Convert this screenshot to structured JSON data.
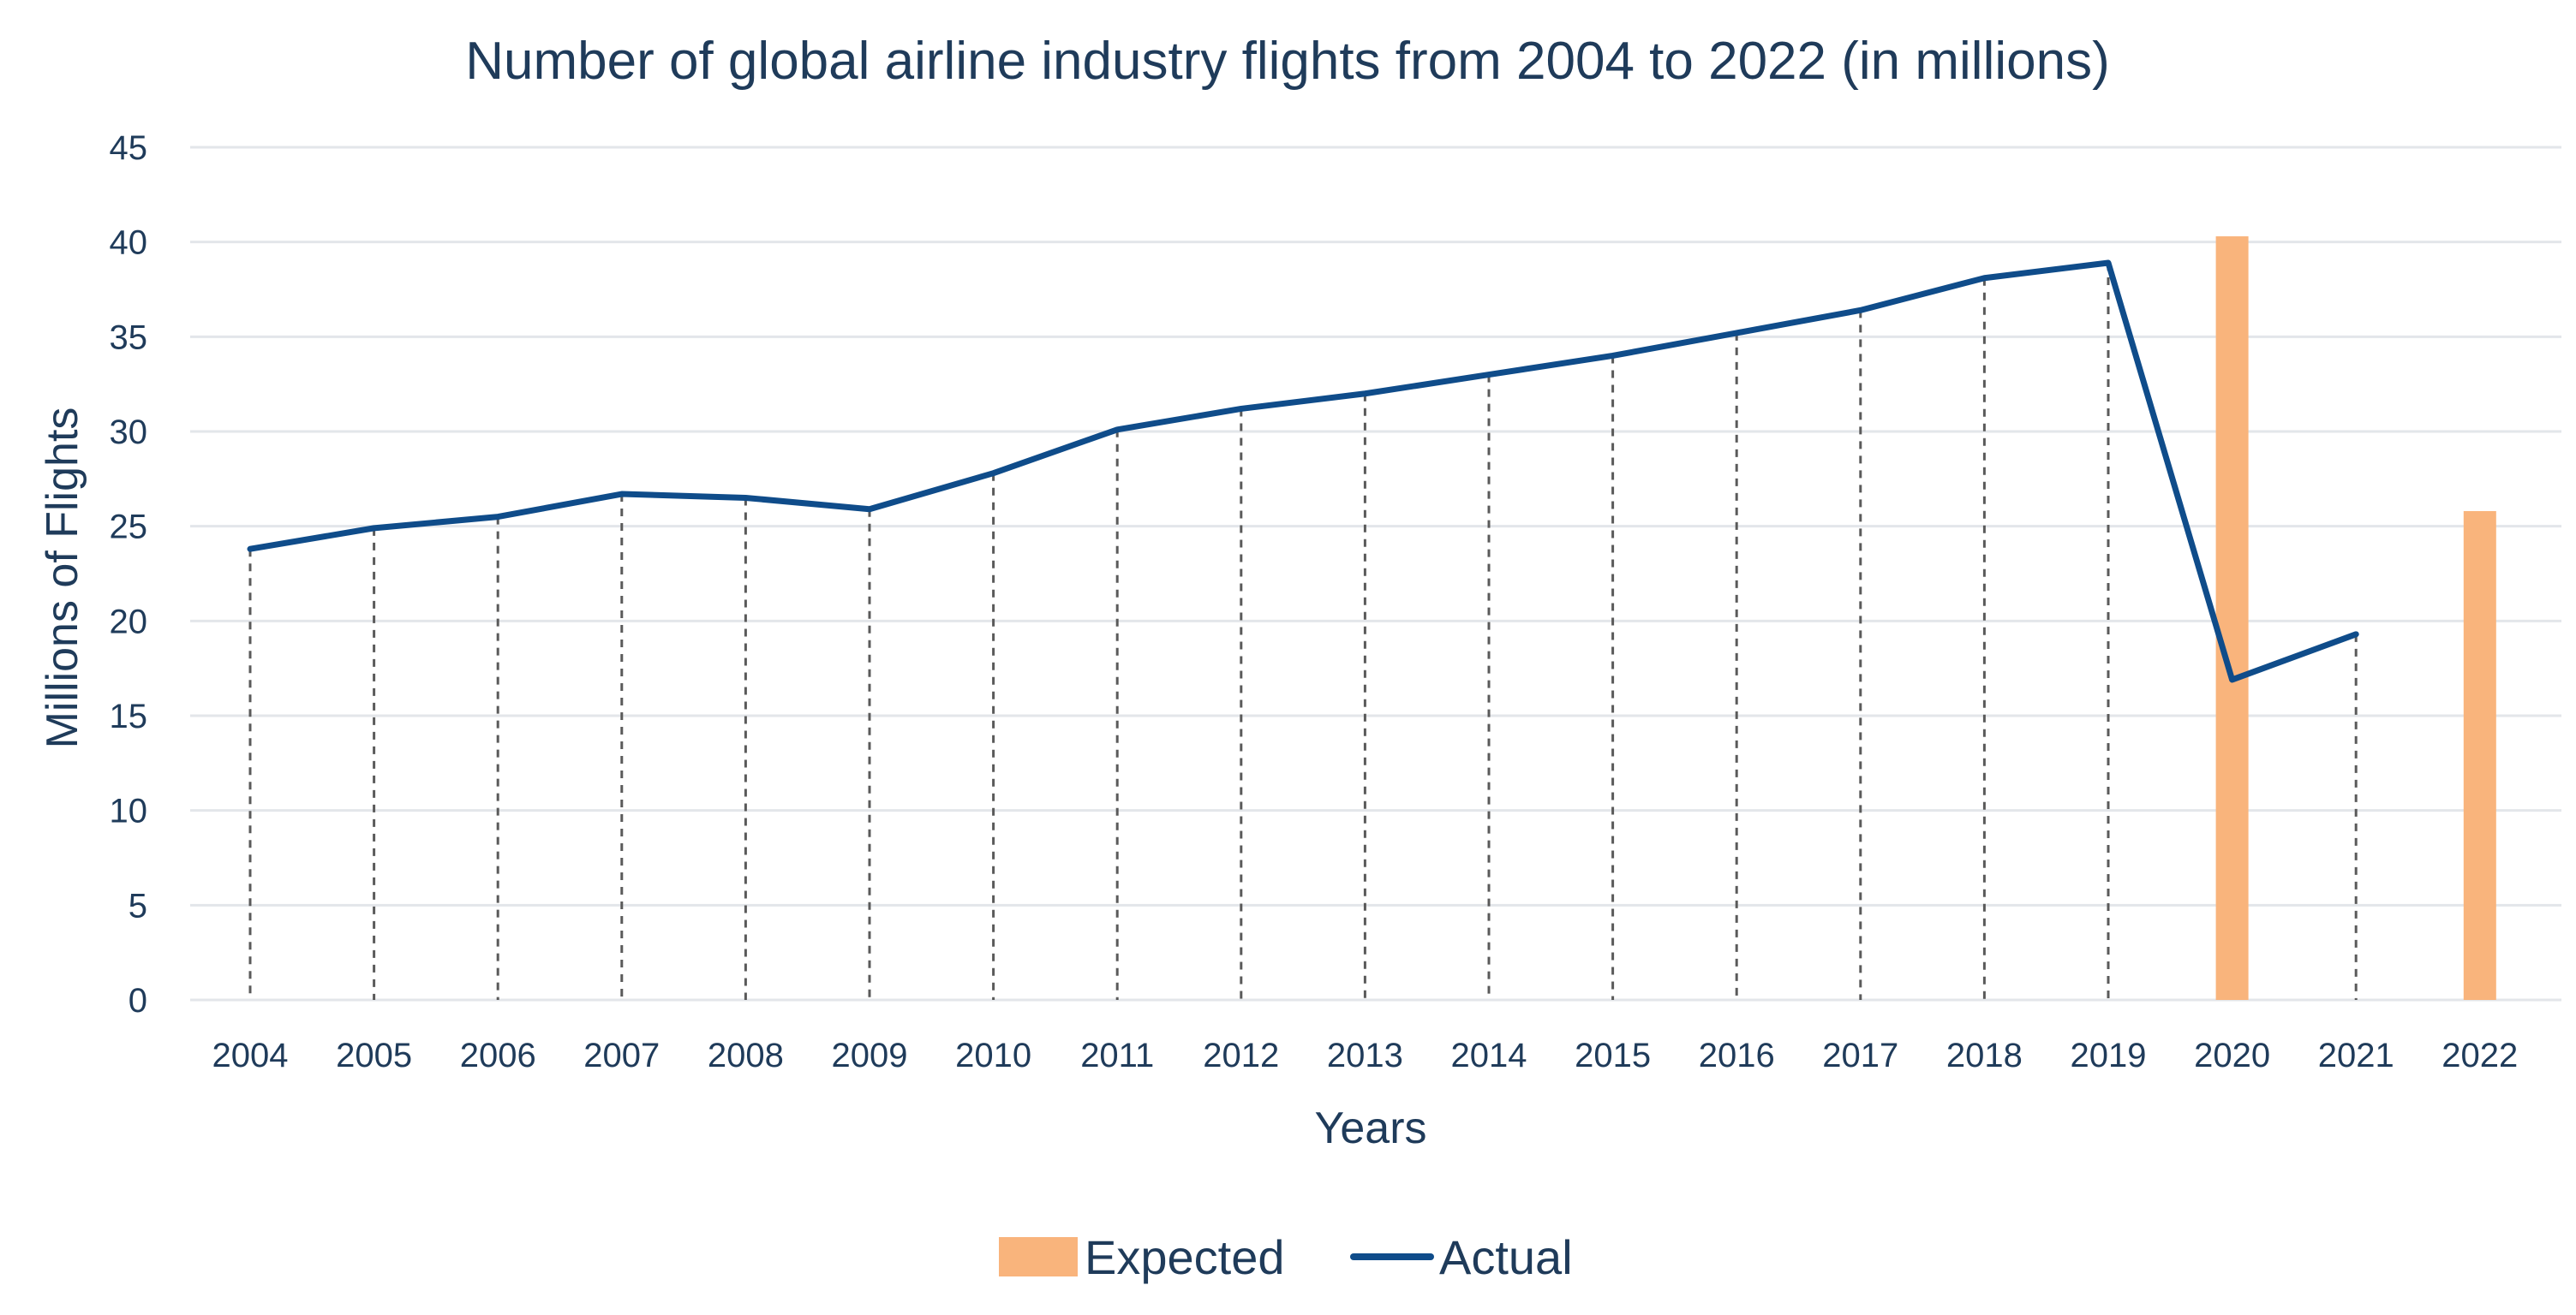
{
  "chart_data": {
    "type": "bar+line",
    "title": "Number of global airline industry flights from 2004 to 2022 (in millions)",
    "xlabel": "Years",
    "ylabel": "Millions of Flights",
    "ylim": [
      0,
      45
    ],
    "yticks": [
      0,
      5,
      10,
      15,
      20,
      25,
      30,
      35,
      40,
      45
    ],
    "grid": true,
    "legend_position": "bottom-center",
    "categories": [
      "2004",
      "2005",
      "2006",
      "2007",
      "2008",
      "2009",
      "2010",
      "2011",
      "2012",
      "2013",
      "2014",
      "2015",
      "2016",
      "2017",
      "2018",
      "2019",
      "2020",
      "2021",
      "2022"
    ],
    "series": [
      {
        "name": "Expected",
        "kind": "bar",
        "color": "#f9b47c",
        "values": [
          null,
          null,
          null,
          null,
          null,
          null,
          null,
          null,
          null,
          null,
          null,
          null,
          null,
          null,
          null,
          null,
          40.3,
          null,
          25.8
        ]
      },
      {
        "name": "Actual",
        "kind": "line",
        "color": "#0f4c8a",
        "values": [
          23.8,
          24.9,
          25.5,
          26.7,
          26.5,
          25.9,
          27.8,
          30.1,
          31.2,
          32.0,
          33.0,
          34.0,
          35.2,
          36.4,
          38.1,
          38.9,
          16.9,
          19.3,
          null
        ]
      }
    ]
  }
}
